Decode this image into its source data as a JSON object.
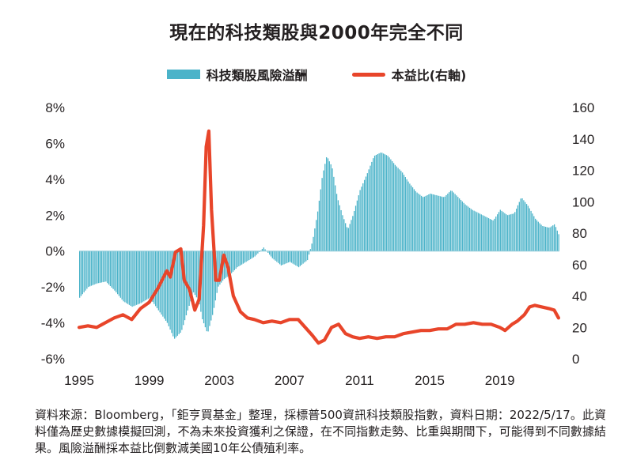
{
  "chart_data": {
    "type": "bar",
    "title": "現在的科技類股與2000年完全不同",
    "legend_position": "top-center",
    "grid": false,
    "x_ticks": [
      "1995",
      "1999",
      "2003",
      "2007",
      "2011",
      "2015",
      "2019"
    ],
    "y_left": {
      "ticks": [
        "8%",
        "6%",
        "4%",
        "2%",
        "0%",
        "-2%",
        "-4%",
        "-6%"
      ],
      "range": [
        -6,
        8
      ],
      "unit": "%"
    },
    "y_right": {
      "ticks": [
        "160",
        "140",
        "120",
        "100",
        "80",
        "60",
        "40",
        "20",
        "0"
      ],
      "range": [
        0,
        160
      ]
    },
    "x_range": [
      1995.0,
      2022.4
    ],
    "series": [
      {
        "name": "科技類股風險溢酬",
        "type": "bar",
        "axis": "left",
        "color": "#4bb3c9",
        "points": [
          [
            1995.0,
            -2.6
          ],
          [
            1995.5,
            -2.0
          ],
          [
            1996.0,
            -1.8
          ],
          [
            1996.5,
            -1.7
          ],
          [
            1997.0,
            -2.2
          ],
          [
            1997.5,
            -2.8
          ],
          [
            1998.0,
            -3.1
          ],
          [
            1998.5,
            -2.9
          ],
          [
            1999.0,
            -2.6
          ],
          [
            1999.5,
            -3.3
          ],
          [
            2000.0,
            -4.0
          ],
          [
            2000.4,
            -4.9
          ],
          [
            2000.8,
            -4.5
          ],
          [
            2001.2,
            -3.2
          ],
          [
            2001.5,
            -2.3
          ],
          [
            2001.8,
            -2.8
          ],
          [
            2002.0,
            -3.8
          ],
          [
            2002.3,
            -4.6
          ],
          [
            2002.6,
            -3.5
          ],
          [
            2002.9,
            -2.0
          ],
          [
            2003.2,
            -1.6
          ],
          [
            2003.6,
            -1.3
          ],
          [
            2004.0,
            -0.9
          ],
          [
            2004.5,
            -0.6
          ],
          [
            2005.0,
            -0.3
          ],
          [
            2005.5,
            0.2
          ],
          [
            2006.0,
            -0.4
          ],
          [
            2006.5,
            -0.8
          ],
          [
            2007.0,
            -0.6
          ],
          [
            2007.5,
            -0.9
          ],
          [
            2008.0,
            -0.5
          ],
          [
            2008.3,
            0.6
          ],
          [
            2008.6,
            2.3
          ],
          [
            2008.85,
            4.2
          ],
          [
            2009.1,
            5.3
          ],
          [
            2009.4,
            4.7
          ],
          [
            2009.7,
            3.0
          ],
          [
            2010.0,
            2.0
          ],
          [
            2010.3,
            1.2
          ],
          [
            2010.6,
            2.0
          ],
          [
            2011.0,
            3.4
          ],
          [
            2011.4,
            4.3
          ],
          [
            2011.8,
            5.3
          ],
          [
            2012.2,
            5.5
          ],
          [
            2012.6,
            5.3
          ],
          [
            2013.0,
            4.8
          ],
          [
            2013.4,
            4.4
          ],
          [
            2013.8,
            3.8
          ],
          [
            2014.2,
            3.3
          ],
          [
            2014.6,
            3.0
          ],
          [
            2015.0,
            3.2
          ],
          [
            2015.4,
            3.1
          ],
          [
            2015.8,
            3.0
          ],
          [
            2016.2,
            3.4
          ],
          [
            2016.6,
            3.0
          ],
          [
            2017.0,
            2.6
          ],
          [
            2017.4,
            2.3
          ],
          [
            2017.8,
            2.1
          ],
          [
            2018.2,
            1.9
          ],
          [
            2018.6,
            1.7
          ],
          [
            2019.0,
            2.3
          ],
          [
            2019.4,
            2.0
          ],
          [
            2019.8,
            2.1
          ],
          [
            2020.2,
            3.0
          ],
          [
            2020.6,
            2.5
          ],
          [
            2021.0,
            1.8
          ],
          [
            2021.4,
            1.4
          ],
          [
            2021.8,
            1.3
          ],
          [
            2022.1,
            1.5
          ],
          [
            2022.35,
            0.9
          ]
        ]
      },
      {
        "name": "本益比(右軸)",
        "type": "line",
        "axis": "right",
        "color": "#e8452a",
        "points": [
          [
            1995.0,
            20
          ],
          [
            1995.5,
            21
          ],
          [
            1996.0,
            20
          ],
          [
            1996.5,
            23
          ],
          [
            1997.0,
            26
          ],
          [
            1997.5,
            28
          ],
          [
            1998.0,
            25
          ],
          [
            1998.5,
            32
          ],
          [
            1999.0,
            36
          ],
          [
            1999.5,
            45
          ],
          [
            2000.0,
            56
          ],
          [
            2000.2,
            52
          ],
          [
            2000.5,
            68
          ],
          [
            2000.8,
            70
          ],
          [
            2001.0,
            50
          ],
          [
            2001.3,
            44
          ],
          [
            2001.6,
            31
          ],
          [
            2001.85,
            38
          ],
          [
            2002.1,
            85
          ],
          [
            2002.25,
            135
          ],
          [
            2002.4,
            145
          ],
          [
            2002.55,
            95
          ],
          [
            2002.8,
            50
          ],
          [
            2003.0,
            50
          ],
          [
            2003.25,
            66
          ],
          [
            2003.5,
            58
          ],
          [
            2003.8,
            40
          ],
          [
            2004.2,
            30
          ],
          [
            2004.6,
            26
          ],
          [
            2005.0,
            25
          ],
          [
            2005.5,
            23
          ],
          [
            2006.0,
            24
          ],
          [
            2006.5,
            23
          ],
          [
            2007.0,
            25
          ],
          [
            2007.5,
            25
          ],
          [
            2007.9,
            20
          ],
          [
            2008.3,
            15
          ],
          [
            2008.65,
            10
          ],
          [
            2009.0,
            12
          ],
          [
            2009.4,
            20
          ],
          [
            2009.8,
            22
          ],
          [
            2010.2,
            16
          ],
          [
            2010.6,
            14
          ],
          [
            2011.0,
            13
          ],
          [
            2011.5,
            14
          ],
          [
            2012.0,
            13
          ],
          [
            2012.5,
            14
          ],
          [
            2013.0,
            14
          ],
          [
            2013.5,
            16
          ],
          [
            2014.0,
            17
          ],
          [
            2014.5,
            18
          ],
          [
            2015.0,
            18
          ],
          [
            2015.5,
            19
          ],
          [
            2016.0,
            19
          ],
          [
            2016.5,
            22
          ],
          [
            2017.0,
            22
          ],
          [
            2017.5,
            23
          ],
          [
            2018.0,
            22
          ],
          [
            2018.5,
            22
          ],
          [
            2019.0,
            20
          ],
          [
            2019.3,
            18
          ],
          [
            2019.7,
            22
          ],
          [
            2020.0,
            24
          ],
          [
            2020.4,
            28
          ],
          [
            2020.7,
            33
          ],
          [
            2021.0,
            34
          ],
          [
            2021.4,
            33
          ],
          [
            2021.8,
            32
          ],
          [
            2022.1,
            31
          ],
          [
            2022.35,
            26
          ]
        ]
      }
    ]
  },
  "legend": [
    {
      "label": "科技類股風險溢酬",
      "kind": "bar",
      "color": "#4bb3c9"
    },
    {
      "label": "本益比(右軸)",
      "kind": "line",
      "color": "#e8452a"
    }
  ],
  "note": "資料來源：Bloomberg，「鉅亨買基金」整理，採標普500資訊科技類股指數，資料日期：2022/5/17。此資料僅為歷史數據模擬回測，不為未來投資獲利之保證，在不同指數走勢、比重與期間下，可能得到不同數據結果。風險溢酬採本益比倒數減美國10年公債殖利率。"
}
